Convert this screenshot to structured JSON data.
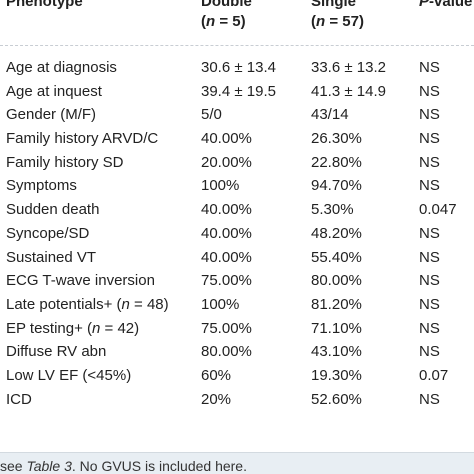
{
  "table": {
    "headers": {
      "phenotype": "Phenotype",
      "double": "Double",
      "double_sub_pre": "(",
      "double_sub_n": "n",
      "double_sub_post": " = 5)",
      "single": "Single",
      "single_sub_pre": "(",
      "single_sub_n": "n",
      "single_sub_post": " = 57)",
      "pvalue_p": "P",
      "pvalue_rest": "-value"
    },
    "rows": [
      {
        "label": "Age at diagnosis",
        "double": "30.6 ± 13.4",
        "single": "33.6 ± 13.2",
        "p": "NS"
      },
      {
        "label": "Age at inquest",
        "double": "39.4 ± 19.5",
        "single": "41.3 ± 14.9",
        "p": "NS"
      },
      {
        "label": "Gender (M/F)",
        "double": "5/0",
        "single": "43/14",
        "p": "NS"
      },
      {
        "label": "Family history ARVD/C",
        "double": "40.00%",
        "single": "26.30%",
        "p": "NS"
      },
      {
        "label": "Family history SD",
        "double": "20.00%",
        "single": "22.80%",
        "p": "NS"
      },
      {
        "label": "Symptoms",
        "double": "100%",
        "single": "94.70%",
        "p": "NS"
      },
      {
        "label": "Sudden death",
        "double": "40.00%",
        "single": "5.30%",
        "p": "0.047"
      },
      {
        "label": "Syncope/SD",
        "double": "40.00%",
        "single": "48.20%",
        "p": "NS"
      },
      {
        "label": "Sustained VT",
        "double": "40.00%",
        "single": "55.40%",
        "p": "NS"
      },
      {
        "label": "ECG T-wave inversion",
        "double": "75.00%",
        "single": "80.00%",
        "p": "NS"
      },
      {
        "label_pre": "Late potentials+ (",
        "label_n": "n",
        "label_post": " = 48)",
        "double": "100%",
        "single": "81.20%",
        "p": "NS"
      },
      {
        "label_pre": "EP testing+ (",
        "label_n": "n",
        "label_post": " = 42)",
        "double": "75.00%",
        "single": "71.10%",
        "p": "NS"
      },
      {
        "label": "Diffuse RV abn",
        "double": "80.00%",
        "single": "43.10%",
        "p": "NS"
      },
      {
        "label": "Low LV EF (<45%)",
        "double": "60%",
        "single": "19.30%",
        "p": "0.07"
      },
      {
        "label": "ICD",
        "double": "20%",
        "single": "52.60%",
        "p": "NS"
      }
    ]
  },
  "footer": {
    "pre": "see ",
    "link": "Table 3",
    "post": ". No GVUS is included here."
  }
}
